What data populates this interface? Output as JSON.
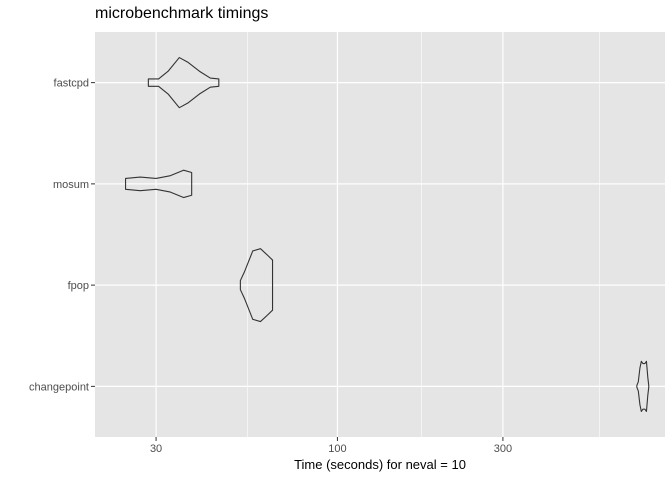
{
  "chart_data": {
    "type": "violin",
    "title": "microbenchmark timings",
    "xlabel": "Time (seconds) for neval = 10",
    "ylabel": "",
    "x_scale": "log10",
    "xlim": [
      20,
      880
    ],
    "x_ticks": [
      {
        "value": 30,
        "label": "30"
      },
      {
        "value": 100,
        "label": "100"
      },
      {
        "value": 300,
        "label": "300"
      }
    ],
    "x_minor_ticks": [
      55,
      175,
      570
    ],
    "categories": [
      "fastcpd",
      "mosum",
      "fpop",
      "changepoint"
    ],
    "series": [
      {
        "category": "fastcpd",
        "min": 28.5,
        "max": 45.5,
        "density": [
          [
            28.5,
            0.08
          ],
          [
            30.5,
            0.08
          ],
          [
            32.5,
            0.25
          ],
          [
            35,
            0.55
          ],
          [
            37,
            0.45
          ],
          [
            40,
            0.25
          ],
          [
            43,
            0.1
          ],
          [
            45.5,
            0.08
          ]
        ]
      },
      {
        "category": "mosum",
        "min": 24.5,
        "max": 38,
        "density": [
          [
            24.5,
            0.12
          ],
          [
            27,
            0.15
          ],
          [
            30,
            0.12
          ],
          [
            33,
            0.18
          ],
          [
            36,
            0.3
          ],
          [
            38,
            0.25
          ]
        ]
      },
      {
        "category": "fpop",
        "min": 52.5,
        "max": 65,
        "density": [
          [
            52.5,
            0.1
          ],
          [
            54,
            0.3
          ],
          [
            57,
            0.75
          ],
          [
            60,
            0.8
          ],
          [
            63,
            0.65
          ],
          [
            65,
            0.55
          ]
        ]
      },
      {
        "category": "changepoint",
        "min": 730,
        "max": 790,
        "density": [
          [
            730,
            0.02
          ],
          [
            737,
            0.1
          ],
          [
            745,
            0.4
          ],
          [
            752,
            0.55
          ],
          [
            760,
            0.5
          ],
          [
            770,
            0.5
          ],
          [
            778,
            0.55
          ],
          [
            785,
            0.2
          ],
          [
            790,
            0.02
          ]
        ]
      }
    ],
    "panel_background": "#e5e5e5",
    "gridline_color": "#ffffff",
    "grid": true,
    "legend": "none",
    "outline_color": "#333333"
  }
}
